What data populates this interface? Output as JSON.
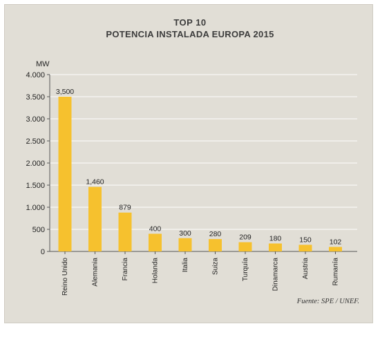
{
  "chart_data": {
    "type": "bar",
    "title": "TOP 10",
    "subtitle": "POTENCIA INSTALADA EUROPA 2015",
    "ylabel": "MW",
    "ylim": [
      0,
      4000
    ],
    "yticks": [
      0,
      500,
      1000,
      1500,
      2000,
      2500,
      3000,
      3500,
      4000
    ],
    "ytick_labels": [
      "0",
      "500",
      "1.000",
      "1.500",
      "2.000",
      "2.500",
      "3.000",
      "3.500",
      "4.000"
    ],
    "grid": true,
    "categories": [
      "Reino Unido",
      "Alemania",
      "Francia",
      "Holanda",
      "Italia",
      "Suiza",
      "Turquía",
      "Dinamarca",
      "Austria",
      "Rumanía"
    ],
    "values": [
      3500,
      1460,
      879,
      400,
      300,
      280,
      209,
      180,
      150,
      102
    ],
    "value_labels": [
      "3,500",
      "1,460",
      "879",
      "400",
      "300",
      "280",
      "209",
      "180",
      "150",
      "102"
    ],
    "bar_color": "#f6c12e",
    "source": "Fuente: SPE / UNEF."
  }
}
